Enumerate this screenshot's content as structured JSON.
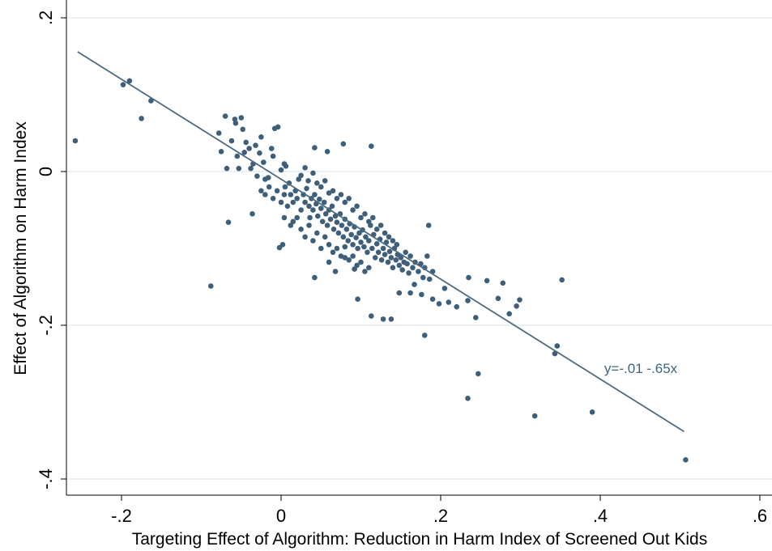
{
  "chart_data": {
    "type": "scatter",
    "xlabel": "Targeting Effect of Algorithm: Reduction in Harm Index of Screened Out Kids",
    "ylabel": "Effect of Algorithm on Harm Index",
    "xlim": [
      -0.27,
      0.62
    ],
    "ylim": [
      -0.42,
      0.2
    ],
    "x_ticks": [
      -0.2,
      0,
      0.2,
      0.4,
      0.6
    ],
    "x_tick_labels": [
      "-.2",
      "0",
      ".2",
      ".4",
      ".6"
    ],
    "y_ticks": [
      -0.4,
      -0.2,
      0,
      0.2
    ],
    "y_tick_labels": [
      "-.4",
      "-.2",
      "0",
      ".2"
    ],
    "grid": "horizontal",
    "legend": "none",
    "colors": {
      "points": "#3e5f7a",
      "fit_line": "#4d6b80",
      "grid": "#e3ecf0",
      "annotation": "#3e6480"
    },
    "fit_line": {
      "intercept": -0.01,
      "slope": -0.65,
      "x_range": [
        -0.255,
        0.505
      ]
    },
    "annotation": {
      "text": "y=-.01 -.65x",
      "x": 0.405,
      "y": -0.262
    },
    "points": [
      [
        -0.258,
        0.04
      ],
      [
        -0.198,
        0.113
      ],
      [
        -0.19,
        0.118
      ],
      [
        -0.175,
        0.069
      ],
      [
        -0.163,
        0.092
      ],
      [
        -0.088,
        -0.149
      ],
      [
        -0.078,
        0.05
      ],
      [
        -0.075,
        0.026
      ],
      [
        -0.07,
        0.072
      ],
      [
        -0.068,
        0.004
      ],
      [
        -0.066,
        -0.066
      ],
      [
        -0.062,
        0.04
      ],
      [
        -0.058,
        0.068
      ],
      [
        -0.057,
        0.063
      ],
      [
        -0.055,
        0.02
      ],
      [
        -0.053,
        0.004
      ],
      [
        -0.05,
        0.07
      ],
      [
        -0.048,
        0.055
      ],
      [
        -0.046,
        0.025
      ],
      [
        -0.044,
        0.038
      ],
      [
        -0.04,
        0.03
      ],
      [
        -0.038,
        0.004
      ],
      [
        -0.036,
        -0.055
      ],
      [
        -0.035,
        0.01
      ],
      [
        -0.032,
        0.034
      ],
      [
        -0.03,
        -0.006
      ],
      [
        -0.027,
        0.024
      ],
      [
        -0.025,
        0.045
      ],
      [
        -0.022,
        0.012
      ],
      [
        -0.02,
        -0.03
      ],
      [
        -0.016,
        -0.008
      ],
      [
        -0.012,
        0.03
      ],
      [
        -0.01,
        0.02
      ],
      [
        -0.008,
        0.056
      ],
      [
        -0.004,
        0.058
      ],
      [
        -0.002,
        -0.099
      ],
      [
        0.002,
        -0.095
      ],
      [
        0.006,
        0.007
      ],
      [
        0.004,
        -0.06
      ],
      [
        0.012,
        -0.07
      ],
      [
        0.042,
        0.031
      ],
      [
        0.058,
        0.026
      ],
      [
        0.078,
        0.036
      ],
      [
        0.042,
        -0.138
      ],
      [
        0.06,
        -0.118
      ],
      [
        0.068,
        -0.13
      ],
      [
        0.08,
        -0.112
      ],
      [
        0.092,
        -0.127
      ],
      [
        0.096,
        -0.166
      ],
      [
        0.113,
        -0.188
      ],
      [
        0.113,
        0.033
      ],
      [
        0.128,
        -0.192
      ],
      [
        0.138,
        -0.192
      ],
      [
        0.148,
        -0.158
      ],
      [
        0.162,
        -0.158
      ],
      [
        0.167,
        -0.147
      ],
      [
        0.176,
        -0.16
      ],
      [
        0.18,
        -0.213
      ],
      [
        0.185,
        -0.07
      ],
      [
        0.19,
        -0.166
      ],
      [
        0.198,
        -0.172
      ],
      [
        0.205,
        -0.152
      ],
      [
        0.21,
        -0.17
      ],
      [
        0.22,
        -0.176
      ],
      [
        0.234,
        -0.168
      ],
      [
        0.235,
        -0.138
      ],
      [
        0.244,
        -0.19
      ],
      [
        0.234,
        -0.295
      ],
      [
        0.247,
        -0.263
      ],
      [
        0.258,
        -0.142
      ],
      [
        0.272,
        -0.165
      ],
      [
        0.278,
        -0.145
      ],
      [
        0.286,
        -0.185
      ],
      [
        0.295,
        -0.175
      ],
      [
        0.299,
        -0.167
      ],
      [
        0.318,
        -0.318
      ],
      [
        0.343,
        -0.237
      ],
      [
        0.346,
        -0.227
      ],
      [
        0.352,
        -0.141
      ],
      [
        0.39,
        -0.313
      ],
      [
        0.507,
        -0.375
      ],
      [
        0.005,
        -0.02
      ],
      [
        0.01,
        -0.015
      ],
      [
        0.012,
        -0.03
      ],
      [
        0.015,
        -0.04
      ],
      [
        0.018,
        -0.025
      ],
      [
        0.02,
        -0.035
      ],
      [
        0.022,
        -0.01
      ],
      [
        0.025,
        -0.05
      ],
      [
        0.028,
        -0.03
      ],
      [
        0.03,
        -0.04
      ],
      [
        0.032,
        -0.022
      ],
      [
        0.035,
        -0.045
      ],
      [
        0.036,
        -0.06
      ],
      [
        0.038,
        -0.035
      ],
      [
        0.04,
        -0.05
      ],
      [
        0.042,
        -0.03
      ],
      [
        0.044,
        -0.042
      ],
      [
        0.046,
        -0.058
      ],
      [
        0.048,
        -0.036
      ],
      [
        0.05,
        -0.048
      ],
      [
        0.052,
        -0.065
      ],
      [
        0.054,
        -0.04
      ],
      [
        0.056,
        -0.055
      ],
      [
        0.058,
        -0.07
      ],
      [
        0.06,
        -0.05
      ],
      [
        0.062,
        -0.062
      ],
      [
        0.064,
        -0.045
      ],
      [
        0.066,
        -0.075
      ],
      [
        0.068,
        -0.058
      ],
      [
        0.07,
        -0.066
      ],
      [
        0.072,
        -0.08
      ],
      [
        0.074,
        -0.055
      ],
      [
        0.076,
        -0.07
      ],
      [
        0.078,
        -0.085
      ],
      [
        0.08,
        -0.062
      ],
      [
        0.082,
        -0.075
      ],
      [
        0.084,
        -0.09
      ],
      [
        0.086,
        -0.068
      ],
      [
        0.088,
        -0.082
      ],
      [
        0.09,
        -0.095
      ],
      [
        0.092,
        -0.072
      ],
      [
        0.094,
        -0.086
      ],
      [
        0.096,
        -0.1
      ],
      [
        0.098,
        -0.08
      ],
      [
        0.1,
        -0.092
      ],
      [
        0.102,
        -0.076
      ],
      [
        0.104,
        -0.098
      ],
      [
        0.106,
        -0.085
      ],
      [
        0.108,
        -0.105
      ],
      [
        0.11,
        -0.09
      ],
      [
        0.112,
        -0.07
      ],
      [
        0.114,
        -0.1
      ],
      [
        0.116,
        -0.082
      ],
      [
        0.118,
        -0.112
      ],
      [
        0.12,
        -0.094
      ],
      [
        0.122,
        -0.105
      ],
      [
        0.124,
        -0.088
      ],
      [
        0.126,
        -0.115
      ],
      [
        0.128,
        -0.1
      ],
      [
        0.13,
        -0.108
      ],
      [
        0.132,
        -0.092
      ],
      [
        0.134,
        -0.118
      ],
      [
        0.136,
        -0.104
      ],
      [
        0.138,
        -0.112
      ],
      [
        0.14,
        -0.125
      ],
      [
        0.142,
        -0.1
      ],
      [
        0.144,
        -0.115
      ],
      [
        0.146,
        -0.108
      ],
      [
        0.148,
        -0.122
      ],
      [
        0.15,
        -0.112
      ],
      [
        0.152,
        -0.128
      ],
      [
        0.154,
        -0.118
      ],
      [
        0.156,
        -0.105
      ],
      [
        0.158,
        -0.12
      ],
      [
        0.16,
        -0.132
      ],
      [
        0.162,
        -0.11
      ],
      [
        0.165,
        -0.125
      ],
      [
        0.168,
        -0.118
      ],
      [
        0.172,
        -0.13
      ],
      [
        0.175,
        -0.12
      ],
      [
        0.178,
        -0.138
      ],
      [
        0.18,
        -0.125
      ],
      [
        0.183,
        -0.11
      ],
      [
        0.186,
        -0.14
      ],
      [
        0.19,
        -0.13
      ],
      [
        0.025,
        -0.005
      ],
      [
        0.03,
        0.005
      ],
      [
        0.034,
        -0.012
      ],
      [
        0.04,
        -0.002
      ],
      [
        0.045,
        -0.015
      ],
      [
        0.05,
        -0.02
      ],
      [
        0.055,
        -0.012
      ],
      [
        0.06,
        -0.028
      ],
      [
        0.065,
        -0.025
      ],
      [
        0.07,
        -0.035
      ],
      [
        0.075,
        -0.03
      ],
      [
        0.08,
        -0.04
      ],
      [
        0.085,
        -0.035
      ],
      [
        0.09,
        -0.05
      ],
      [
        0.095,
        -0.045
      ],
      [
        0.1,
        -0.06
      ],
      [
        0.105,
        -0.055
      ],
      [
        0.11,
        -0.065
      ],
      [
        0.115,
        -0.06
      ],
      [
        0.12,
        -0.075
      ],
      [
        0.125,
        -0.07
      ],
      [
        0.13,
        -0.08
      ],
      [
        0.135,
        -0.085
      ],
      [
        0.14,
        -0.09
      ],
      [
        0.145,
        -0.095
      ],
      [
        0.015,
        -0.065
      ],
      [
        0.02,
        -0.06
      ],
      [
        0.025,
        -0.075
      ],
      [
        0.03,
        -0.085
      ],
      [
        0.035,
        -0.07
      ],
      [
        0.04,
        -0.09
      ],
      [
        0.045,
        -0.08
      ],
      [
        0.05,
        -0.1
      ],
      [
        0.055,
        -0.085
      ],
      [
        0.06,
        -0.095
      ],
      [
        0.065,
        -0.105
      ],
      [
        0.07,
        -0.1
      ],
      [
        0.075,
        -0.11
      ],
      [
        0.08,
        -0.098
      ],
      [
        0.085,
        -0.115
      ],
      [
        0.09,
        -0.11
      ],
      [
        0.095,
        -0.122
      ],
      [
        0.1,
        -0.118
      ],
      [
        0.105,
        -0.13
      ],
      [
        0.11,
        -0.125
      ],
      [
        -0.015,
        -0.02
      ],
      [
        -0.01,
        -0.035
      ],
      [
        -0.005,
        -0.025
      ],
      [
        0.0,
        -0.04
      ],
      [
        0.004,
        -0.03
      ],
      [
        0.008,
        -0.045
      ],
      [
        -0.02,
        -0.01
      ],
      [
        -0.025,
        -0.025
      ],
      [
        0.0,
        0.002
      ],
      [
        0.004,
        0.01
      ]
    ]
  }
}
